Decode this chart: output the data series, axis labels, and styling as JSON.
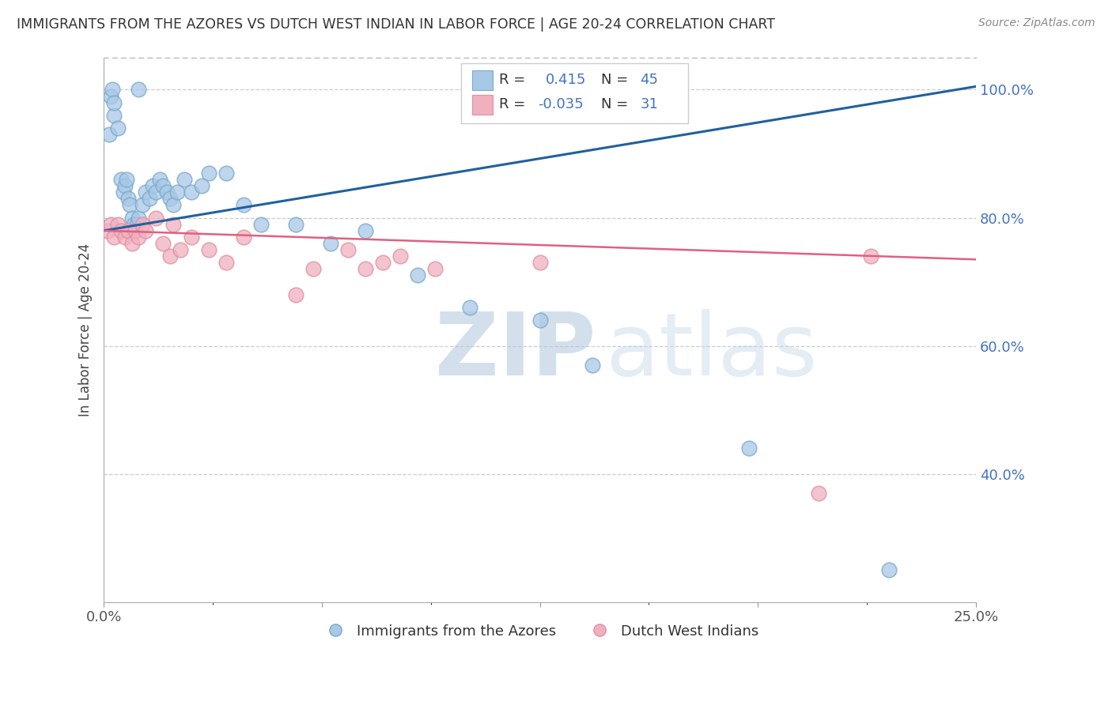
{
  "title": "IMMIGRANTS FROM THE AZORES VS DUTCH WEST INDIAN IN LABOR FORCE | AGE 20-24 CORRELATION CHART",
  "source": "Source: ZipAtlas.com",
  "ylabel": "In Labor Force | Age 20-24",
  "legend1_R": "0.415",
  "legend1_N": "45",
  "legend2_R": "-0.035",
  "legend2_N": "31",
  "blue_color": "#a8c8e8",
  "blue_edge_color": "#7aaac8",
  "pink_color": "#f0b0c0",
  "pink_edge_color": "#e090a0",
  "blue_line_color": "#2060a0",
  "pink_line_color": "#e06080",
  "watermark_zip_color": "#b8cce0",
  "watermark_atlas_color": "#c8dce8",
  "xmin": 0.0,
  "xmax": 25.0,
  "ymin": 20.0,
  "ymax": 105.0,
  "ytick_vals": [
    40,
    60,
    80,
    100
  ],
  "ytick_labels": [
    "40.0%",
    "60.0%",
    "80.0%",
    "100.0%"
  ],
  "blue_x": [
    0.15,
    0.3,
    0.4,
    0.5,
    0.55,
    0.6,
    0.65,
    0.7,
    0.75,
    0.8,
    0.85,
    0.9,
    0.95,
    1.0,
    1.1,
    1.2,
    1.3,
    1.4,
    1.5,
    1.6,
    1.7,
    1.8,
    1.9,
    2.0,
    2.1,
    2.3,
    2.5,
    2.8,
    3.0,
    3.5,
    4.0,
    4.5,
    5.5,
    6.5,
    7.5,
    9.0,
    10.5,
    12.5,
    14.0,
    18.5,
    22.5,
    0.2,
    0.25,
    0.3,
    1.0
  ],
  "blue_y": [
    93.0,
    96.0,
    94.0,
    86.0,
    84.0,
    85.0,
    86.0,
    83.0,
    82.0,
    80.0,
    79.0,
    78.0,
    79.0,
    80.0,
    82.0,
    84.0,
    83.0,
    85.0,
    84.0,
    86.0,
    85.0,
    84.0,
    83.0,
    82.0,
    84.0,
    86.0,
    84.0,
    85.0,
    87.0,
    87.0,
    82.0,
    79.0,
    79.0,
    76.0,
    78.0,
    71.0,
    66.0,
    64.0,
    57.0,
    44.0,
    25.0,
    99.0,
    100.0,
    98.0,
    100.0
  ],
  "pink_x": [
    0.1,
    0.2,
    0.3,
    0.4,
    0.5,
    0.6,
    0.7,
    0.8,
    0.9,
    1.0,
    1.1,
    1.2,
    1.5,
    1.7,
    1.9,
    2.0,
    2.2,
    2.5,
    3.0,
    3.5,
    4.0,
    5.5,
    6.0,
    7.0,
    7.5,
    8.0,
    8.5,
    9.5,
    12.5,
    20.5,
    22.0
  ],
  "pink_y": [
    78.0,
    79.0,
    77.0,
    79.0,
    78.0,
    77.0,
    78.0,
    76.0,
    78.0,
    77.0,
    79.0,
    78.0,
    80.0,
    76.0,
    74.0,
    79.0,
    75.0,
    77.0,
    75.0,
    73.0,
    77.0,
    68.0,
    72.0,
    75.0,
    72.0,
    73.0,
    74.0,
    72.0,
    73.0,
    37.0,
    74.0
  ],
  "blue_line_x0": 0.0,
  "blue_line_y0": 78.0,
  "blue_line_x1": 25.0,
  "blue_line_y1": 100.5,
  "pink_line_x0": 0.0,
  "pink_line_y0": 78.0,
  "pink_line_x1": 25.0,
  "pink_line_y1": 73.5
}
